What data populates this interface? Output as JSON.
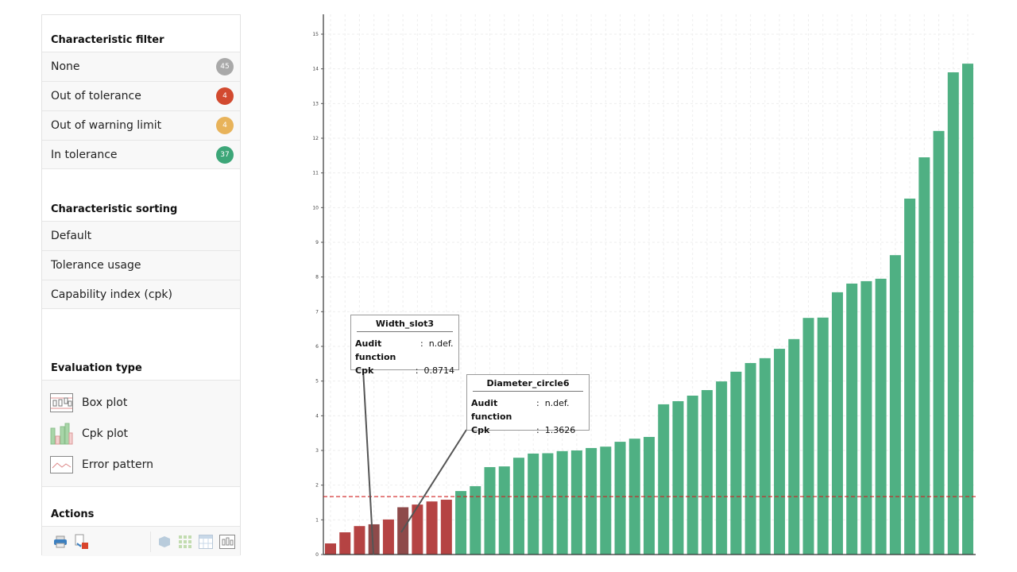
{
  "sidebar": {
    "filter": {
      "title": "Characteristic filter",
      "items": [
        {
          "label": "None",
          "count": "45",
          "color": "#a9a9a9"
        },
        {
          "label": "Out of tolerance",
          "count": "4",
          "color": "#d24a2f"
        },
        {
          "label": "Out of warning limit",
          "count": "4",
          "color": "#e8b35a"
        },
        {
          "label": "In tolerance",
          "count": "37",
          "color": "#3ca678"
        }
      ]
    },
    "sorting": {
      "title": "Characteristic sorting",
      "items": [
        {
          "label": "Default"
        },
        {
          "label": "Tolerance usage"
        },
        {
          "label": "Capability index (cpk)"
        }
      ]
    },
    "evaluation": {
      "title": "Evaluation type",
      "items": [
        {
          "label": "Box plot",
          "icon": "box-plot-icon"
        },
        {
          "label": "Cpk plot",
          "icon": "cpk-plot-icon"
        },
        {
          "label": "Error pattern",
          "icon": "error-pattern-icon"
        }
      ]
    },
    "actions": {
      "title": "Actions",
      "icons": [
        "print-icon",
        "export-pdf-icon",
        "3d-view-icon",
        "grid-icon",
        "table-icon",
        "chart-icon"
      ]
    }
  },
  "tooltips": [
    {
      "title": "Width_slot3",
      "rows": [
        {
          "key": "Audit function",
          "value": "n.def."
        },
        {
          "key": "Cpk",
          "value": "0.8714"
        }
      ]
    },
    {
      "title": "Diameter_circle6",
      "rows": [
        {
          "key": "Audit function",
          "value": "n.def."
        },
        {
          "key": "Cpk",
          "value": "1.3626"
        }
      ]
    }
  ],
  "chart_data": {
    "type": "bar",
    "title": "",
    "xlabel": "",
    "ylabel": "",
    "ylim": [
      0,
      15
    ],
    "yticks": [
      "0",
      "1",
      "2",
      "3",
      "4",
      "5",
      "6",
      "7",
      "8",
      "9",
      "10",
      "11",
      "12",
      "13",
      "14",
      "15"
    ],
    "grid": true,
    "threshold": 1.67,
    "colors": {
      "below": "#b54343",
      "above": "#4fb083",
      "highlight": "#8e4a4a",
      "threshold": "#d22020"
    },
    "highlighted": [
      3,
      5
    ],
    "values": [
      0.32,
      0.64,
      0.82,
      0.8714,
      1.01,
      1.3626,
      1.44,
      1.53,
      1.58,
      1.83,
      1.97,
      2.52,
      2.54,
      2.79,
      2.91,
      2.92,
      2.98,
      3.0,
      3.07,
      3.11,
      3.25,
      3.34,
      3.39,
      4.33,
      4.42,
      4.58,
      4.74,
      4.99,
      5.27,
      5.52,
      5.66,
      5.93,
      6.21,
      6.82,
      6.83,
      7.56,
      7.81,
      7.88,
      7.95,
      8.63,
      10.26,
      11.45,
      12.21,
      13.9,
      14.15
    ]
  }
}
